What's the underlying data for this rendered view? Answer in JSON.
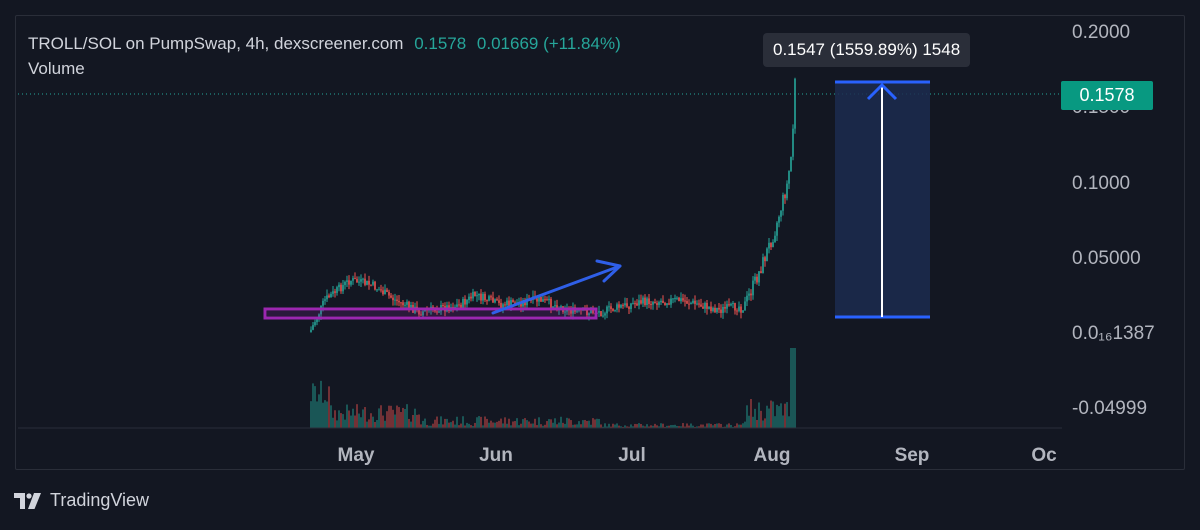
{
  "header": {
    "title": "TROLL/SOL on PumpSwap, 4h, dexscreener.com",
    "price": "0.1578",
    "change": "0.01669 (+11.84%)",
    "volume_label": "Volume"
  },
  "measure_tooltip": "0.1547 (1559.89%) 1548",
  "last_price_tag": "0.1578",
  "footer": {
    "brand": "TradingView"
  },
  "colors": {
    "background": "#131722",
    "up": "#26a69a",
    "down": "#ef5350",
    "measure_fill": "#1c2c4f",
    "measure_line": "#2962ff",
    "range_box": "#9c27b0",
    "arrow": "#2f5fe8"
  },
  "chart_data": {
    "type": "candlestick",
    "interval": "4h",
    "y_ticks": [
      "0.2000",
      "0.1500",
      "0.1000",
      "0.05000",
      "0.0₁₆1387",
      "-0.04999"
    ],
    "x_ticks": [
      "May",
      "Jun",
      "Jul",
      "Aug",
      "Sep",
      "Oc"
    ],
    "last_price": 0.1578,
    "measure": {
      "change": 0.1547,
      "change_pct": 1559.89,
      "bars": 1548
    },
    "series": [
      {
        "name": "Price",
        "points": [
          [
            "late Apr",
            0.005
          ],
          [
            "early May",
            0.04
          ],
          [
            "mid May",
            0.035
          ],
          [
            "late May",
            0.025
          ],
          [
            "early Jun",
            0.03
          ],
          [
            "mid Jun",
            0.022
          ],
          [
            "late Jun",
            0.015
          ],
          [
            "early Jul",
            0.02
          ],
          [
            "mid Jul",
            0.02
          ],
          [
            "late Jul",
            0.02
          ],
          [
            "end Jul",
            0.045
          ],
          [
            "early Aug",
            0.1
          ],
          [
            "Aug",
            0.1578
          ]
        ]
      }
    ],
    "grid": false
  }
}
